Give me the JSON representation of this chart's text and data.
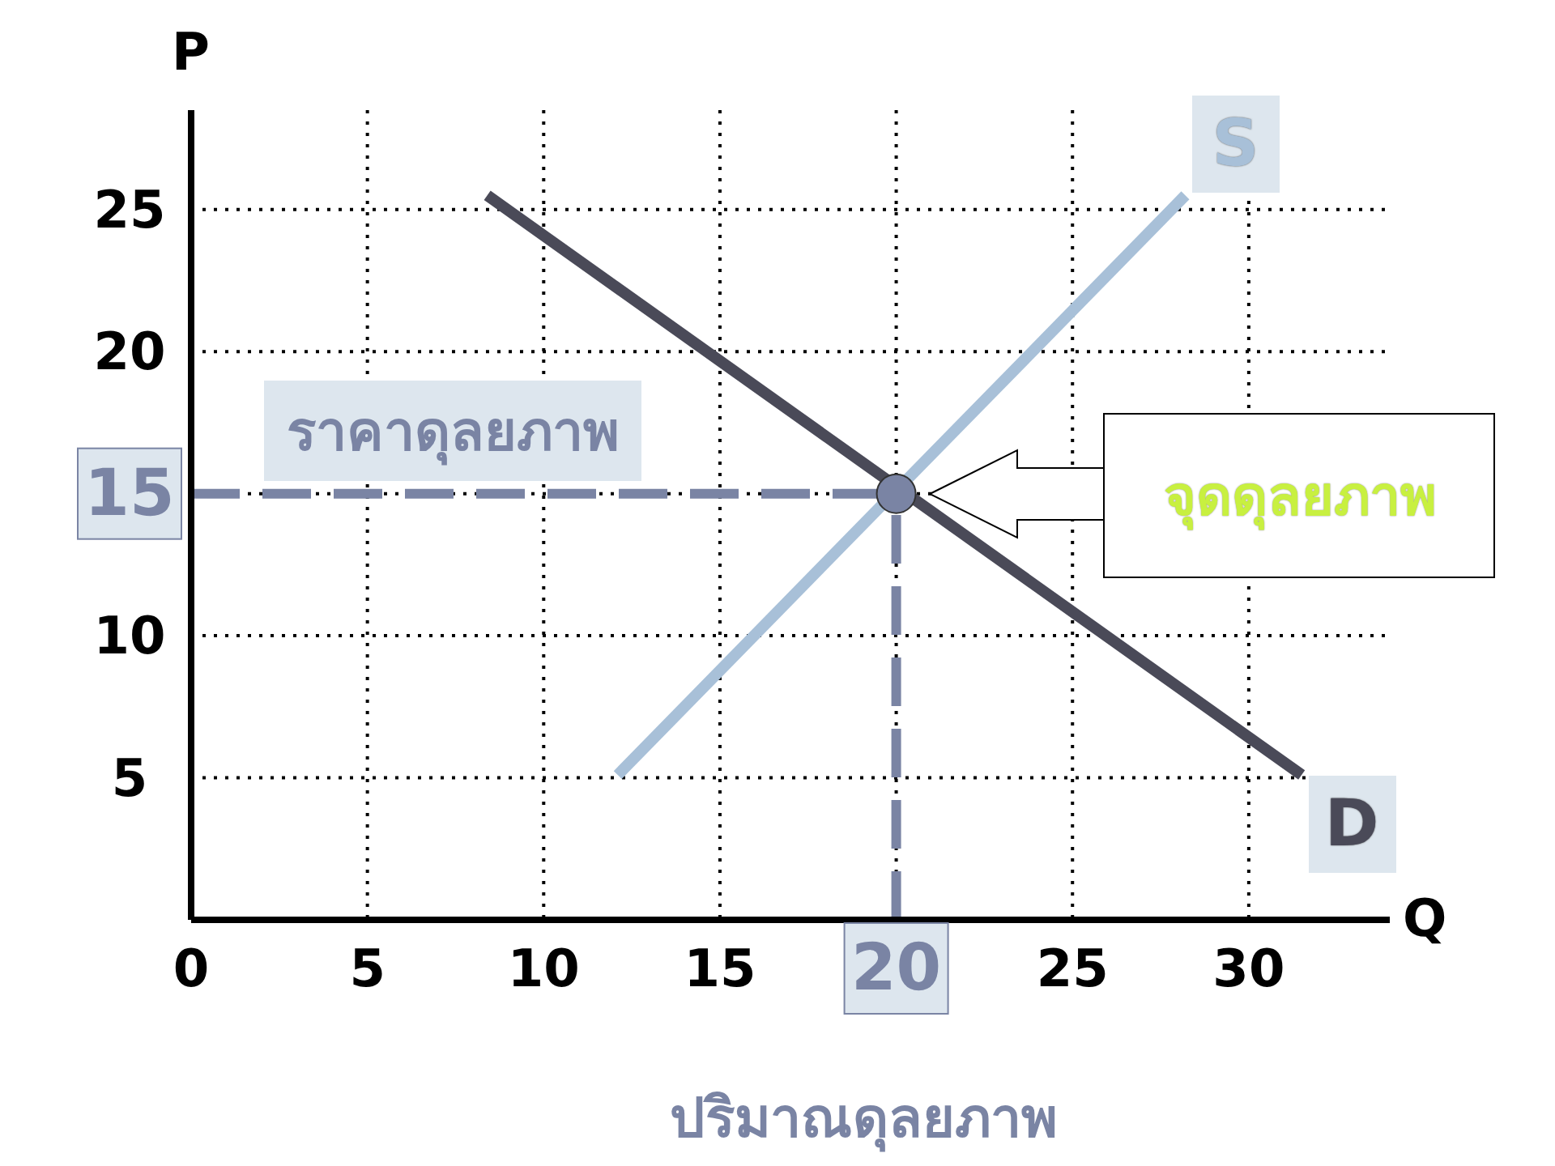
{
  "chart_data": {
    "type": "line",
    "xlabel": "Q",
    "ylabel": "P",
    "xlim": [
      0,
      34
    ],
    "ylim": [
      0,
      28.5
    ],
    "xticks": [
      0,
      5,
      10,
      15,
      20,
      25,
      30
    ],
    "yticks": [
      5,
      10,
      15,
      20,
      25
    ],
    "grid": true,
    "line_style": "solid",
    "marker": "none",
    "series": [
      {
        "name": "S",
        "color": "#a8c0d8",
        "x": [
          12.1,
          28.2
        ],
        "values": [
          5.1,
          25.5
        ]
      },
      {
        "name": "D",
        "color": "#4a4a58",
        "x": [
          8.4,
          31.5
        ],
        "values": [
          25.5,
          5.1
        ]
      },
      {
        "type": "scatter",
        "color": "#7a84a4",
        "x": [
          20
        ],
        "values": [
          15
        ],
        "marker": "circle"
      }
    ],
    "ref_lines": [
      {
        "axis": "y",
        "value": 15,
        "label": "ราคาดุลยภาพ",
        "color": "#7a84a4",
        "line_style": "dashed"
      },
      {
        "axis": "x",
        "value": 20,
        "label": "ปริมาณดุลยภาพ",
        "color": "#7a84a4",
        "line_style": "dashed"
      }
    ],
    "annotations": [
      "จุดดุลยภาพ"
    ]
  }
}
